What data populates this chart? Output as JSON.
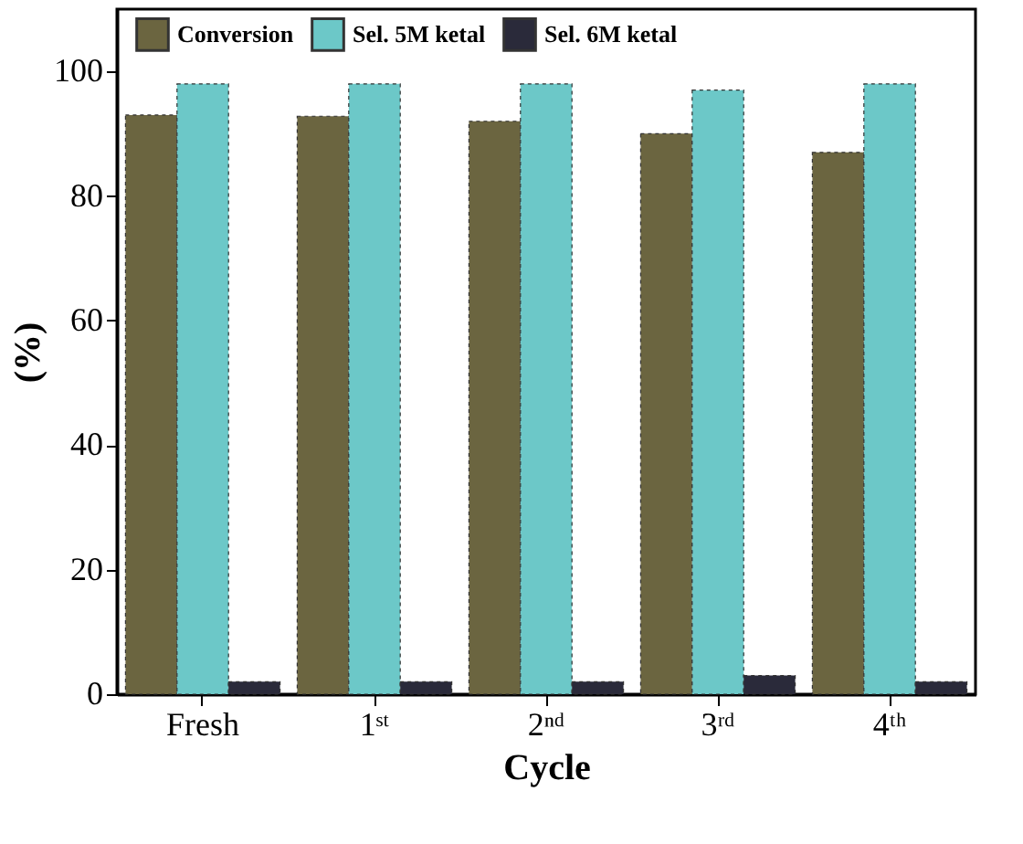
{
  "chart_data": {
    "type": "bar",
    "xlabel": "Cycle",
    "ylabel": "(%)",
    "categories": [
      "Fresh",
      "1ˢᵗ",
      "2ⁿᵈ",
      "3ʳᵈ",
      "4ᵗʰ"
    ],
    "series": [
      {
        "name": "Conversion",
        "color": "#6b6540",
        "values": [
          93,
          92.8,
          92,
          90,
          87
        ]
      },
      {
        "name": "Sel. 5M ketal",
        "color": "#6cc8c8",
        "values": [
          98,
          98,
          98,
          97,
          98
        ]
      },
      {
        "name": "Sel. 6M ketal",
        "color": "#2a2a3a",
        "values": [
          2,
          2,
          2,
          3,
          2
        ]
      }
    ],
    "ylim": [
      0,
      110
    ],
    "yticks": [
      0,
      20,
      40,
      60,
      80,
      100
    ],
    "grid": false,
    "legend": "top"
  }
}
